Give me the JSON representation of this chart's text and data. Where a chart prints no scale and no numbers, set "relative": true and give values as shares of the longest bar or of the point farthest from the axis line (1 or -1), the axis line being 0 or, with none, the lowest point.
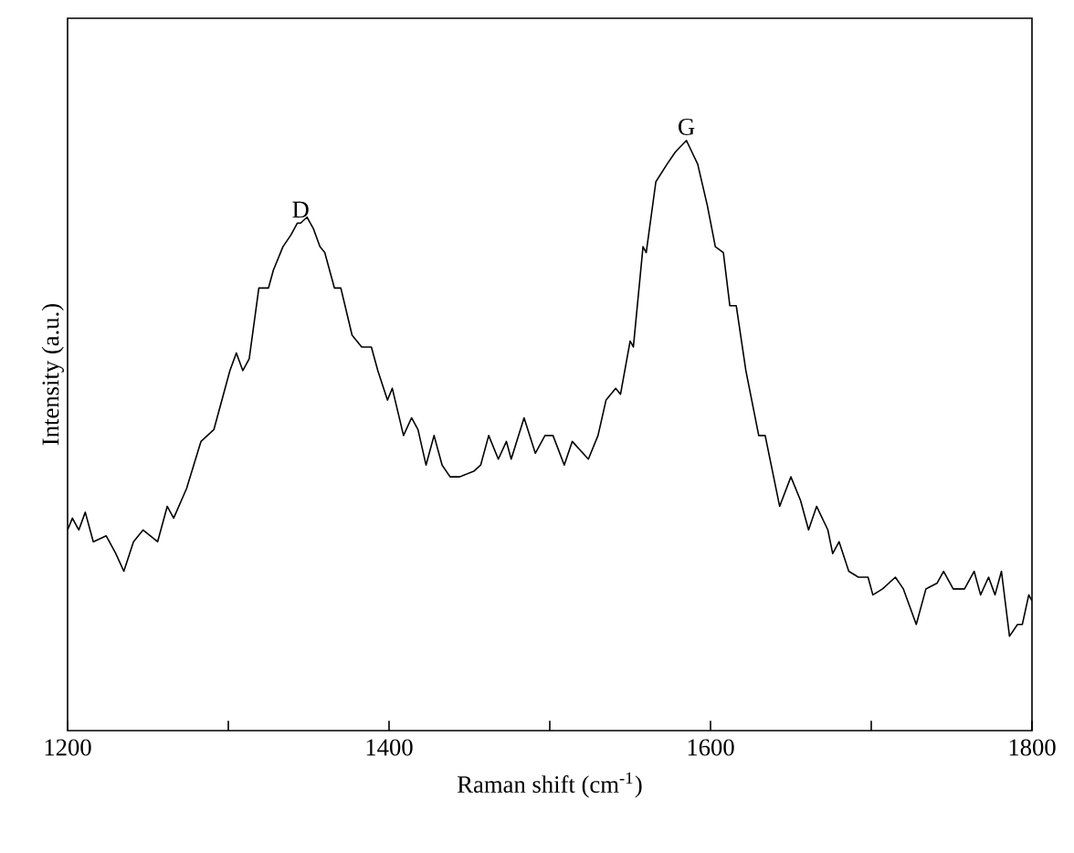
{
  "chart_data": {
    "type": "line",
    "relative": true,
    "xlabel": "Raman shift (cm$^{-1}$)",
    "ylabel": "Intensity (a.u.)",
    "xlim": [
      1200,
      1800
    ],
    "xticks": [
      1200,
      {
        "value": 1300,
        "label": null
      },
      1400,
      {
        "value": 1500,
        "label": null
      },
      1600,
      {
        "value": 1700,
        "label": null
      },
      1800
    ],
    "annotations": [
      {
        "text": "D",
        "x": 1345,
        "y": 0.86
      },
      {
        "text": "G",
        "x": 1585,
        "y": 1
      }
    ],
    "series": [
      {
        "color": "#000000",
        "x": [
          1200,
          1203,
          1207,
          1211,
          1216,
          1224,
          1230,
          1235,
          1241,
          1247,
          1256,
          1262,
          1266,
          1274,
          1283,
          1291,
          1301,
          1305,
          1309,
          1313,
          1319,
          1325,
          1328,
          1334,
          1339,
          1343,
          1345,
          1349,
          1353,
          1357,
          1360,
          1366,
          1370,
          1377,
          1383,
          1389,
          1393,
          1399,
          1402,
          1409,
          1414,
          1418,
          1423,
          1428,
          1433,
          1438,
          1444,
          1453,
          1457,
          1462,
          1468,
          1473,
          1476,
          1484,
          1491,
          1497,
          1502,
          1509,
          1514,
          1524,
          1530,
          1535,
          1541,
          1544,
          1550,
          1552,
          1558,
          1560,
          1566,
          1573,
          1578,
          1585,
          1592,
          1598,
          1603,
          1608,
          1612,
          1616,
          1622,
          1630,
          1634,
          1643,
          1650,
          1656,
          1661,
          1666,
          1673,
          1676,
          1680,
          1686,
          1692,
          1698,
          1701,
          1707,
          1715,
          1720,
          1728,
          1734,
          1741,
          1745,
          1751,
          1758,
          1764,
          1768,
          1773,
          1777,
          1781,
          1786,
          1791,
          1794,
          1798,
          1800
        ],
        "values": [
          0.34,
          0.36,
          0.34,
          0.37,
          0.32,
          0.33,
          0.3,
          0.27,
          0.32,
          0.34,
          0.32,
          0.38,
          0.36,
          0.41,
          0.49,
          0.51,
          0.61,
          0.64,
          0.61,
          0.63,
          0.75,
          0.75,
          0.78,
          0.82,
          0.84,
          0.86,
          0.86,
          0.87,
          0.85,
          0.82,
          0.81,
          0.75,
          0.75,
          0.67,
          0.65,
          0.65,
          0.61,
          0.56,
          0.58,
          0.5,
          0.53,
          0.51,
          0.45,
          0.5,
          0.45,
          0.43,
          0.43,
          0.44,
          0.45,
          0.5,
          0.46,
          0.49,
          0.46,
          0.53,
          0.47,
          0.5,
          0.5,
          0.45,
          0.49,
          0.46,
          0.5,
          0.56,
          0.58,
          0.57,
          0.66,
          0.65,
          0.82,
          0.81,
          0.93,
          0.96,
          0.98,
          1,
          0.96,
          0.89,
          0.82,
          0.81,
          0.72,
          0.72,
          0.61,
          0.5,
          0.5,
          0.38,
          0.43,
          0.39,
          0.34,
          0.38,
          0.34,
          0.3,
          0.32,
          0.27,
          0.26,
          0.26,
          0.23,
          0.24,
          0.26,
          0.24,
          0.18,
          0.24,
          0.25,
          0.27,
          0.24,
          0.24,
          0.27,
          0.23,
          0.26,
          0.23,
          0.27,
          0.16,
          0.18,
          0.18,
          0.23,
          0.22
        ]
      }
    ]
  }
}
